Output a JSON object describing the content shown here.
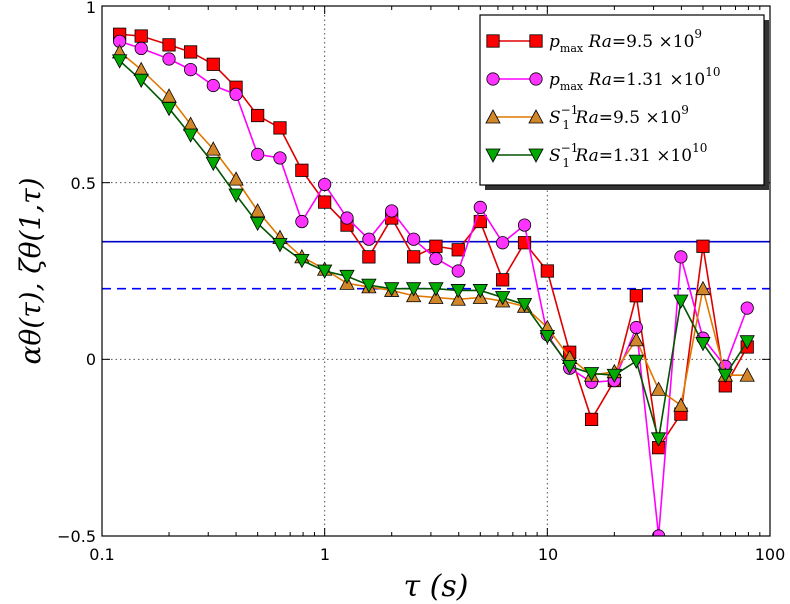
{
  "chart_data": {
    "type": "line",
    "xscale": "log",
    "xlim": [
      0.1,
      100
    ],
    "ylim": [
      -0.5,
      1
    ],
    "xlabel": "τ (s)",
    "ylabel": "αθ(τ), ζθ(1,τ)",
    "xtick_labels": [
      "0.1",
      "1",
      "10",
      "100"
    ],
    "ytick_labels": [
      "−0.5",
      "0",
      "0.5",
      "1"
    ],
    "reference_lines": [
      {
        "y": 0.333,
        "style": "solid",
        "color": "#0000cc"
      },
      {
        "y": 0.2,
        "style": "dashed",
        "color": "#0000ff"
      }
    ],
    "grid_x": [
      1,
      10
    ],
    "grid_y": [
      0,
      0.5
    ],
    "legend_position": "top-right",
    "series": [
      {
        "name": "p_max Ra=9.5×10^9",
        "legend_label": {
          "var": "p",
          "sub": "max",
          "ra": "Ra",
          "mantissa": "=9.5 ×10",
          "exp": "9"
        },
        "color": "#dd0000",
        "marker": "square",
        "marker_fill": "#ff0000",
        "x": [
          0.12,
          0.15,
          0.2,
          0.25,
          0.316,
          0.4,
          0.5,
          0.63,
          0.79,
          1.0,
          1.26,
          1.58,
          2.0,
          2.51,
          3.16,
          3.98,
          5.0,
          6.3,
          7.9,
          10,
          12.6,
          15.8,
          20,
          25.1,
          31.6,
          39.8,
          50,
          63,
          79
        ],
        "y": [
          0.92,
          0.915,
          0.89,
          0.87,
          0.835,
          0.77,
          0.69,
          0.655,
          0.535,
          0.445,
          0.38,
          0.29,
          0.4,
          0.29,
          0.32,
          0.31,
          0.39,
          0.225,
          0.33,
          0.25,
          0.02,
          -0.17,
          -0.06,
          0.18,
          -0.25,
          -0.155,
          0.32,
          -0.075,
          0.035
        ]
      },
      {
        "name": "p_max Ra=1.31×10^10",
        "legend_label": {
          "var": "p",
          "sub": "max",
          "ra": "Ra",
          "mantissa": "=1.31 ×10",
          "exp": "10"
        },
        "color": "#ff00ff",
        "marker": "circle",
        "marker_fill": "#ff33ff",
        "x": [
          0.12,
          0.15,
          0.2,
          0.25,
          0.316,
          0.4,
          0.5,
          0.63,
          0.79,
          1.0,
          1.26,
          1.58,
          2.0,
          2.51,
          3.16,
          3.98,
          5.0,
          6.3,
          7.9,
          10,
          12.6,
          15.8,
          20,
          25.1,
          31.6,
          39.8,
          50,
          63,
          79
        ],
        "y": [
          0.9,
          0.88,
          0.85,
          0.82,
          0.775,
          0.75,
          0.58,
          0.57,
          0.39,
          0.495,
          0.4,
          0.34,
          0.42,
          0.34,
          0.285,
          0.25,
          0.43,
          0.33,
          0.38,
          0.07,
          -0.025,
          -0.065,
          -0.06,
          0.09,
          -0.5,
          0.29,
          0.06,
          -0.02,
          0.145
        ]
      },
      {
        "name": "S1^-1 Ra=9.5×10^9",
        "legend_label": {
          "var": "S",
          "sub": "1",
          "sup": "−1",
          "ra": "Ra",
          "mantissa": "=9.5 ×10",
          "exp": "9"
        },
        "color": "#e07800",
        "marker": "triangle-up",
        "marker_fill": "#d2862a",
        "x": [
          0.12,
          0.15,
          0.2,
          0.25,
          0.316,
          0.4,
          0.5,
          0.63,
          0.79,
          1.0,
          1.26,
          1.58,
          2.0,
          2.51,
          3.16,
          3.98,
          5.0,
          6.3,
          7.9,
          10,
          12.6,
          15.8,
          20,
          25.1,
          31.6,
          39.8,
          50,
          63,
          79
        ],
        "y": [
          0.87,
          0.82,
          0.745,
          0.665,
          0.595,
          0.51,
          0.42,
          0.345,
          0.29,
          0.255,
          0.215,
          0.205,
          0.195,
          0.18,
          0.175,
          0.17,
          0.175,
          0.165,
          0.15,
          0.09,
          0.005,
          -0.045,
          -0.035,
          0.055,
          -0.085,
          -0.13,
          0.2,
          -0.045,
          -0.045
        ]
      },
      {
        "name": "S1^-1 Ra=1.31×10^10",
        "legend_label": {
          "var": "S",
          "sub": "1",
          "sup": "−1",
          "ra": "Ra",
          "mantissa": "=1.31 ×10",
          "exp": "10"
        },
        "color": "#005500",
        "marker": "triangle-down",
        "marker_fill": "#00aa00",
        "x": [
          0.12,
          0.15,
          0.2,
          0.25,
          0.316,
          0.4,
          0.5,
          0.63,
          0.79,
          1.0,
          1.26,
          1.58,
          2.0,
          2.51,
          3.16,
          3.98,
          5.0,
          6.3,
          7.9,
          10,
          12.6,
          15.8,
          20,
          25.1,
          31.6,
          39.8,
          50,
          63,
          79
        ],
        "y": [
          0.845,
          0.79,
          0.71,
          0.635,
          0.555,
          0.465,
          0.385,
          0.325,
          0.28,
          0.25,
          0.235,
          0.21,
          0.2,
          0.2,
          0.2,
          0.195,
          0.195,
          0.175,
          0.155,
          0.065,
          -0.02,
          -0.04,
          -0.045,
          -0.005,
          -0.225,
          0.165,
          0.045,
          -0.045,
          0.05
        ]
      }
    ]
  }
}
